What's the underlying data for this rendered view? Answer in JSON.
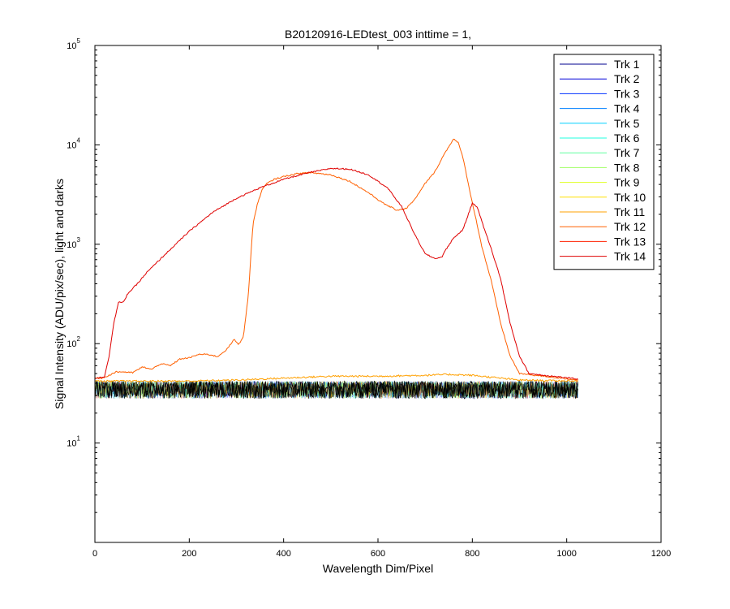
{
  "chart_data": {
    "type": "line",
    "title": "B20120916-LEDtest_003 inttime = 1,",
    "xlabel": "Wavelength Dim/Pixel",
    "ylabel": "Signal Intensity (ADU/pix/sec), light and darks",
    "xlim": [
      0,
      1200
    ],
    "ylim": [
      1,
      100000
    ],
    "yscale": "log",
    "x_ticks": [
      "0",
      "200",
      "400",
      "600",
      "800",
      "1000",
      "1200"
    ],
    "y_ticks": [
      {
        "base": "10",
        "exp": "1"
      },
      {
        "base": "10",
        "exp": "2"
      },
      {
        "base": "10",
        "exp": "3"
      },
      {
        "base": "10",
        "exp": "4"
      },
      {
        "base": "10",
        "exp": "5"
      }
    ],
    "grid": false,
    "legend": "top-right",
    "series": [
      {
        "name": "Trk 1",
        "color": "#00008f",
        "kind": "dark"
      },
      {
        "name": "Trk 2",
        "color": "#0000d8",
        "kind": "dark"
      },
      {
        "name": "Trk 3",
        "color": "#0030ff",
        "kind": "dark"
      },
      {
        "name": "Trk 4",
        "color": "#0080ff",
        "kind": "dark"
      },
      {
        "name": "Trk 5",
        "color": "#00d0ff",
        "kind": "dark"
      },
      {
        "name": "Trk 6",
        "color": "#20ffdf",
        "kind": "dark"
      },
      {
        "name": "Trk 7",
        "color": "#60ff9f",
        "kind": "dark"
      },
      {
        "name": "Trk 8",
        "color": "#9fff60",
        "kind": "dark"
      },
      {
        "name": "Trk 9",
        "color": "#dfff20",
        "kind": "dark"
      },
      {
        "name": "Trk 10",
        "color": "#ffe000",
        "kind": "dark"
      },
      {
        "name": "Trk 11",
        "color": "#ffa000",
        "kind": "flat",
        "x": [
          0,
          100,
          200,
          300,
          400,
          500,
          600,
          700,
          750,
          800,
          900,
          1024
        ],
        "y": [
          42,
          42,
          42,
          43,
          45,
          47,
          47,
          48,
          49,
          48,
          43,
          42
        ]
      },
      {
        "name": "Trk 12",
        "color": "#ff6000",
        "kind": "light",
        "x": [
          0,
          15,
          30,
          45,
          60,
          80,
          100,
          110,
          120,
          140,
          160,
          180,
          200,
          220,
          240,
          260,
          280,
          295,
          305,
          315,
          325,
          335,
          345,
          355,
          365,
          380,
          400,
          430,
          460,
          500,
          540,
          580,
          610,
          640,
          660,
          680,
          700,
          720,
          740,
          760,
          770,
          780,
          790,
          800,
          810,
          820,
          840,
          860,
          880,
          900,
          1024
        ],
        "y": [
          45,
          45,
          48,
          52,
          52,
          51,
          58,
          57,
          55,
          63,
          60,
          70,
          72,
          78,
          78,
          74,
          88,
          110,
          98,
          120,
          300,
          1600,
          2600,
          3600,
          4100,
          4500,
          4800,
          5150,
          5250,
          5000,
          4300,
          3300,
          2600,
          2200,
          2300,
          2900,
          4100,
          5300,
          8000,
          11500,
          10500,
          7500,
          4400,
          2600,
          1600,
          950,
          430,
          160,
          75,
          50,
          43
        ]
      },
      {
        "name": "Trk 13",
        "color": "#ff2000",
        "kind": "dark"
      },
      {
        "name": "Trk 14",
        "color": "#df0000",
        "kind": "light",
        "x": [
          0,
          20,
          30,
          40,
          50,
          60,
          70,
          90,
          110,
          150,
          200,
          250,
          300,
          350,
          400,
          450,
          500,
          540,
          580,
          620,
          650,
          680,
          700,
          720,
          735,
          745,
          760,
          780,
          800,
          810,
          820,
          840,
          860,
          880,
          900,
          920,
          1024
        ],
        "y": [
          45,
          46,
          75,
          160,
          260,
          260,
          320,
          400,
          520,
          800,
          1350,
          2100,
          2900,
          3700,
          4500,
          5200,
          5800,
          5700,
          5000,
          3700,
          2400,
          1200,
          800,
          720,
          740,
          900,
          1150,
          1400,
          2600,
          2400,
          1700,
          900,
          450,
          160,
          75,
          50,
          44
        ]
      }
    ],
    "darks": {
      "x_range": [
        0,
        1024
      ],
      "y_range": [
        28,
        42
      ],
      "color": "#000000"
    }
  }
}
